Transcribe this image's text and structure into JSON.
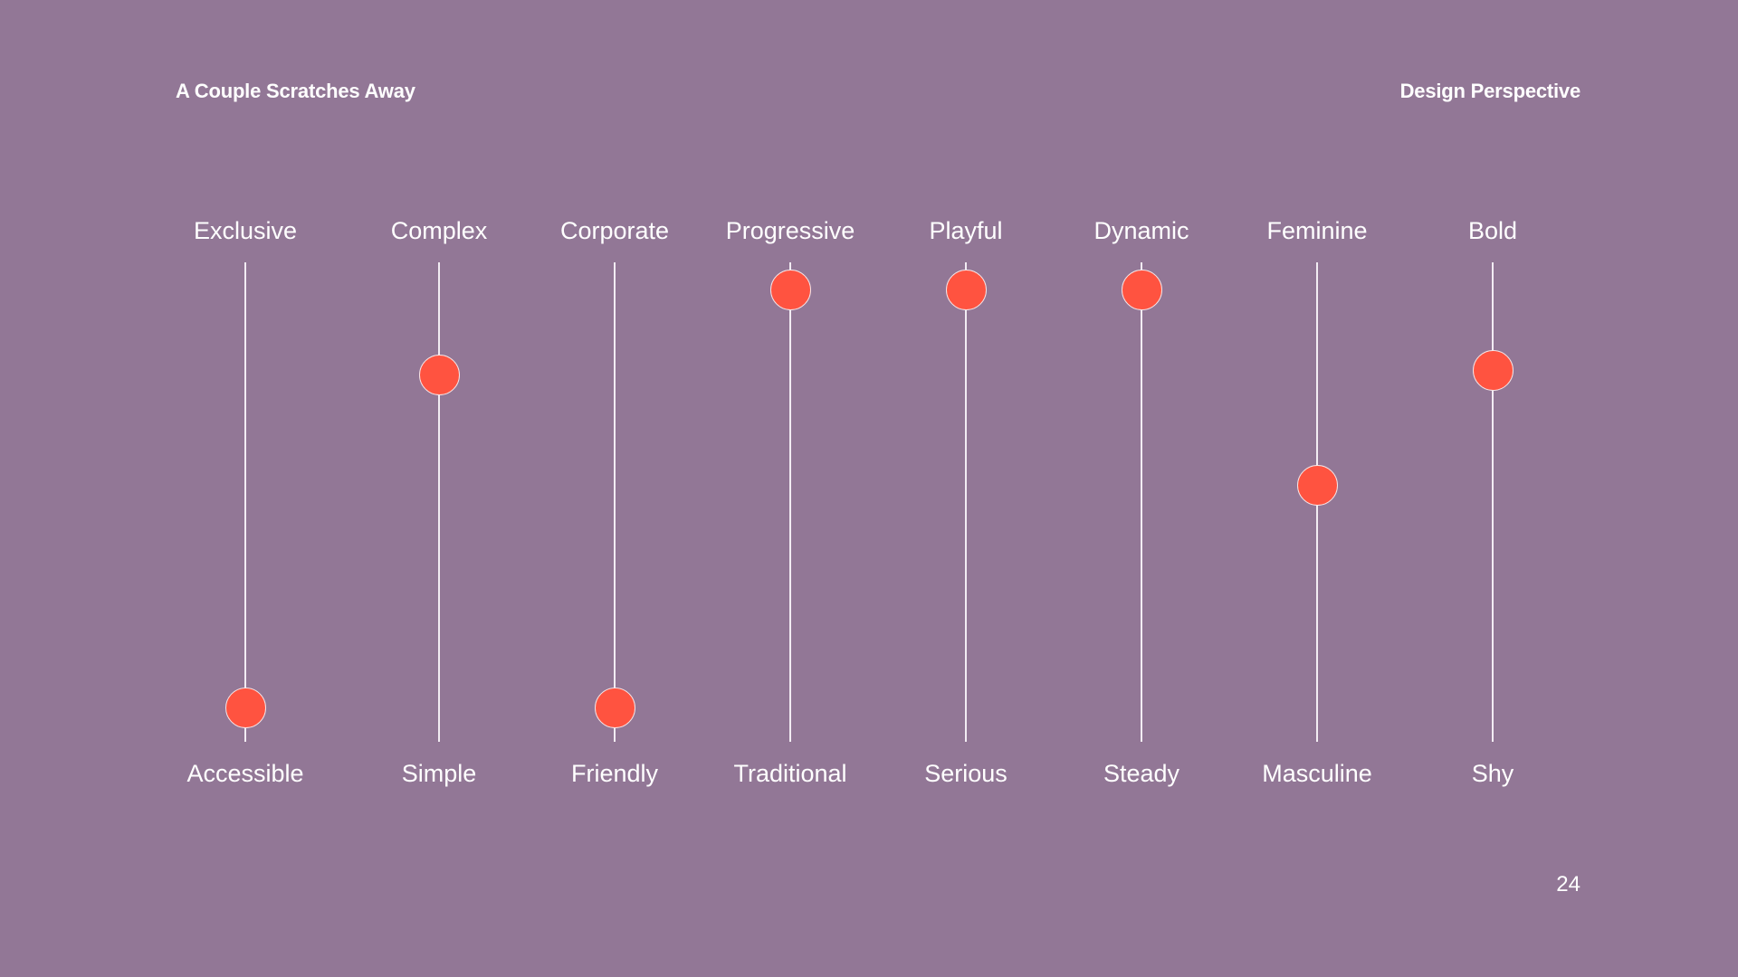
{
  "header": {
    "left_title": "A Couple Scratches Away",
    "right_title": "Design Perspective"
  },
  "page_number": "24",
  "colors": {
    "background": "#927796",
    "knob": "#ff5340",
    "text": "#ffffff",
    "track": "#f2ecf3"
  },
  "sliders": [
    {
      "top_label": "Exclusive",
      "bottom_label": "Accessible",
      "value": 0.03
    },
    {
      "top_label": "Complex",
      "bottom_label": "Simple",
      "value": 0.78
    },
    {
      "top_label": "Corporate",
      "bottom_label": "Friendly",
      "value": 0.03
    },
    {
      "top_label": "Progressive",
      "bottom_label": "Traditional",
      "value": 0.97
    },
    {
      "top_label": "Playful",
      "bottom_label": "Serious",
      "value": 0.97
    },
    {
      "top_label": "Dynamic",
      "bottom_label": "Steady",
      "value": 0.97
    },
    {
      "top_label": "Feminine",
      "bottom_label": "Masculine",
      "value": 0.53
    },
    {
      "top_label": "Bold",
      "bottom_label": "Shy",
      "value": 0.79
    }
  ]
}
